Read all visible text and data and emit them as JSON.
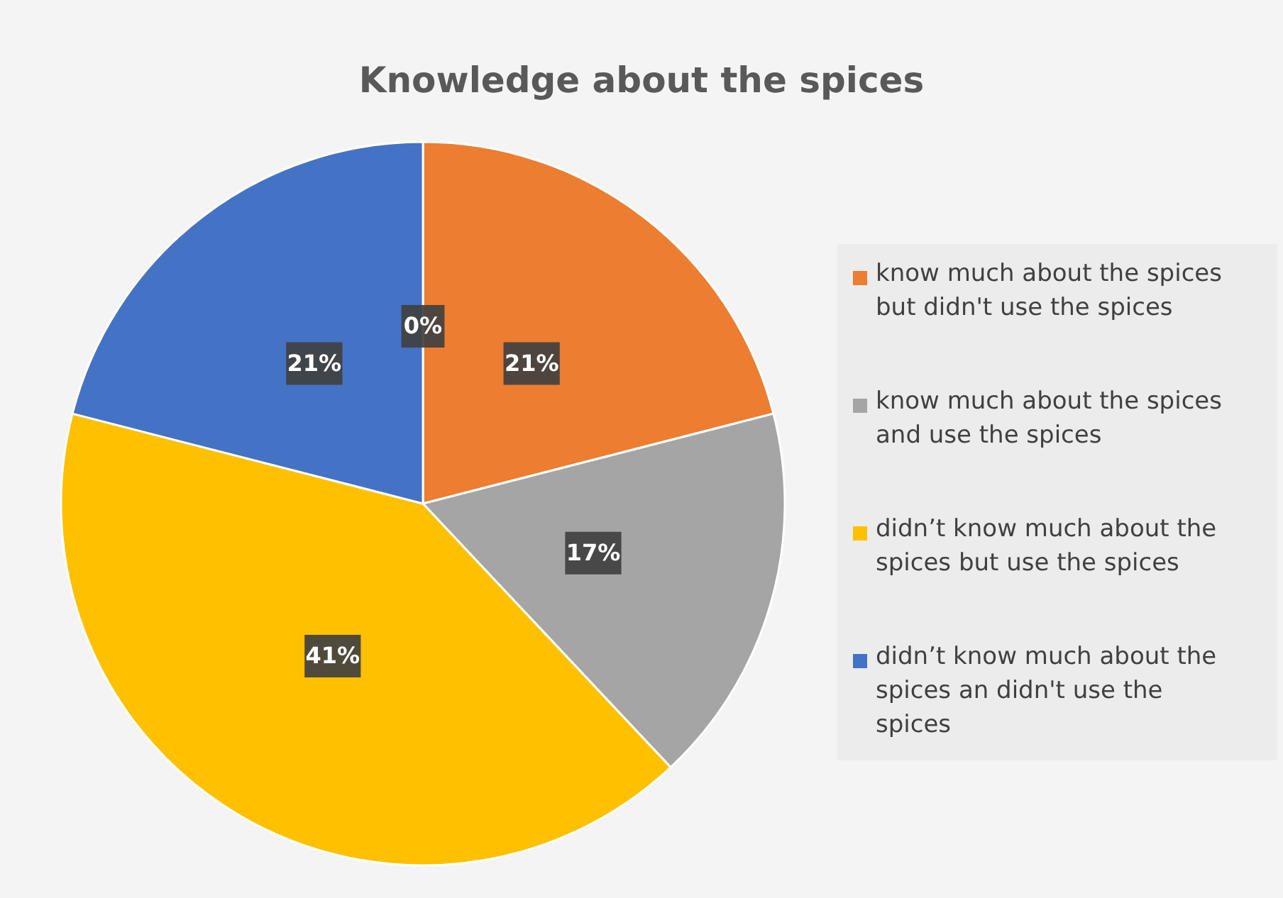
{
  "chart_data": {
    "type": "pie",
    "title": "Knowledge about the spices",
    "categories": [
      null,
      "know much about the spices but didn't use the spices",
      "know much about the spices and use the spices",
      "didn’t know much about the spices but use the spices",
      "didn’t know much about the spices an didn't use the spices"
    ],
    "values": [
      0,
      21,
      17,
      41,
      21
    ],
    "colors": [
      "#5b9bd5",
      "#ed7d31",
      "#a5a5a5",
      "#ffc000",
      "#4472c4"
    ],
    "value_labels": [
      "0%",
      "21%",
      "17%",
      "41%",
      "21%"
    ],
    "legend": "right"
  }
}
